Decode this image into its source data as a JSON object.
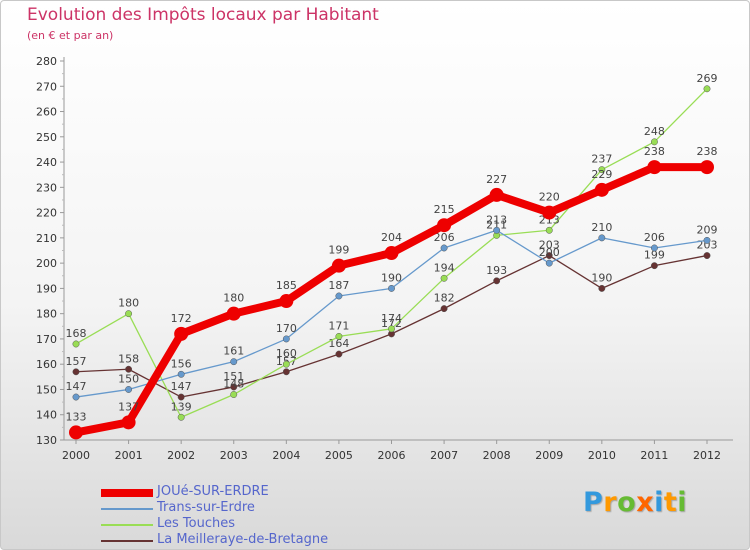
{
  "chart_data": {
    "type": "line",
    "title": "Evolution des Impôts locaux par Habitant",
    "subtitle": "(en € et par an)",
    "xlabel": "",
    "ylabel": "",
    "ylim": [
      130,
      280
    ],
    "ytick_step": 10,
    "grid": false,
    "x": [
      "2000",
      "2001",
      "2002",
      "2003",
      "2004",
      "2005",
      "2006",
      "2007",
      "2008",
      "2009",
      "2010",
      "2011",
      "2012"
    ],
    "series": [
      {
        "name": "JOUé-SUR-ERDRE",
        "color": "#ee0000",
        "values": [
          133,
          137,
          172,
          180,
          185,
          199,
          204,
          215,
          227,
          220,
          229,
          238,
          238
        ]
      },
      {
        "name": "Trans-sur-Erdre",
        "color": "#6699cc",
        "values": [
          147,
          150,
          156,
          161,
          170,
          187,
          190,
          206,
          213,
          200,
          210,
          206,
          209
        ]
      },
      {
        "name": "Les Touches",
        "color": "#99dd55",
        "values": [
          168,
          180,
          139,
          148,
          160,
          171,
          174,
          194,
          211,
          213,
          237,
          248,
          269
        ]
      },
      {
        "name": "La Meilleraye-de-Bretagne",
        "color": "#663333",
        "values": [
          157,
          158,
          147,
          151,
          157,
          164,
          172,
          182,
          193,
          203,
          190,
          199,
          203
        ]
      }
    ]
  },
  "legend": {
    "items": [
      {
        "label": "JOUé-SUR-ERDRE"
      },
      {
        "label": "Trans-sur-Erdre"
      },
      {
        "label": "Les Touches"
      },
      {
        "label": "La Meilleraye-de-Bretagne"
      }
    ]
  },
  "logo": {
    "letters": [
      "P",
      "r",
      "o",
      "x",
      "i",
      "t",
      "i"
    ],
    "colors": [
      "#3399dd",
      "#ff9900",
      "#66bb33",
      "#ff6600",
      "#3399dd",
      "#ff9900",
      "#66bb33"
    ]
  }
}
